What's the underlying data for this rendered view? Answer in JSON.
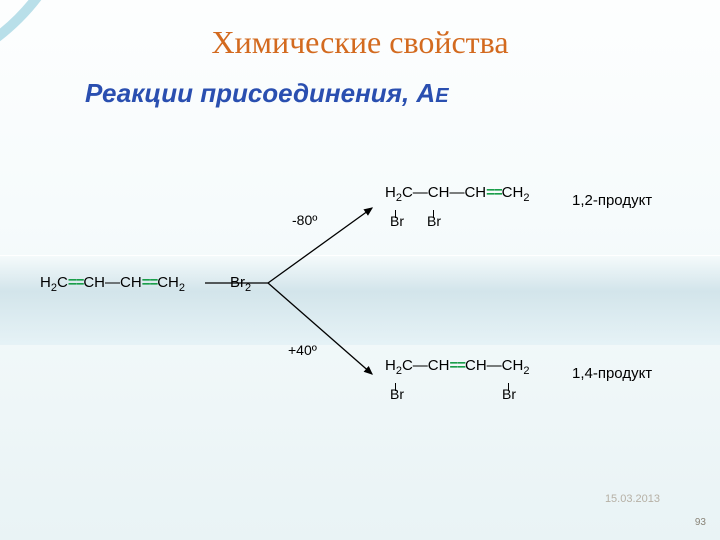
{
  "title": {
    "text": "Химические свойства",
    "color": "#d36a1f"
  },
  "subtitle": {
    "prefix": "Реакции присоединения,  А",
    "suffix": "E",
    "color": "#2a4fb0"
  },
  "reactant": {
    "formula_html": "H<span class='s'>2</span>C<span class='dbl'>==</span>CH—CH<span class='dbl'>==</span>CH<span class='s'>2</span>"
  },
  "reagent": {
    "formula_html": "Br<span class='s'>2</span>"
  },
  "arrows": {
    "stroke": "#000000",
    "temp_top": "-80º",
    "temp_bottom": "+40º"
  },
  "product_top": {
    "formula_html": "H<span class='s'>2</span>C—CH—CH<span class='dbl'>==</span>CH<span class='s'>2</span>",
    "br_positions": [
      10,
      48
    ],
    "label": "1,2-продукт"
  },
  "product_bottom": {
    "formula_html": "H<span class='s'>2</span>C—CH<span class='dbl'>==</span>CH—CH<span class='s'>2</span>",
    "br_positions": [
      10,
      123
    ],
    "label": "1,4-продукт"
  },
  "date": "15.03.2013",
  "page": "93",
  "background": {
    "corner_colors": [
      "#3aa6c3",
      "#ffffff",
      "#8fd0dd"
    ]
  }
}
